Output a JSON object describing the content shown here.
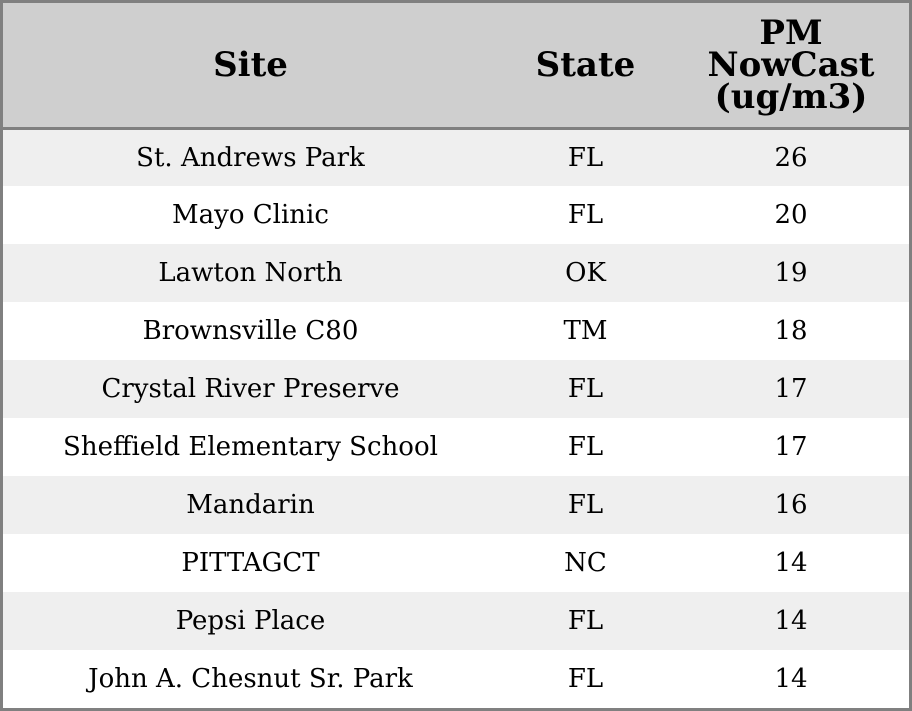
{
  "table": {
    "headers": {
      "site": "Site",
      "state": "State",
      "pm": "PM NowCast (ug/m3)"
    },
    "rows": [
      {
        "site": "St. Andrews Park",
        "state": "FL",
        "pm": "26"
      },
      {
        "site": "Mayo Clinic",
        "state": "FL",
        "pm": "20"
      },
      {
        "site": "Lawton North",
        "state": "OK",
        "pm": "19"
      },
      {
        "site": "Brownsville C80",
        "state": "TM",
        "pm": "18"
      },
      {
        "site": "Crystal River Preserve",
        "state": "FL",
        "pm": "17"
      },
      {
        "site": "Sheffield Elementary School",
        "state": "FL",
        "pm": "17"
      },
      {
        "site": "Mandarin",
        "state": "FL",
        "pm": "16"
      },
      {
        "site": "PITTAGCT",
        "state": "NC",
        "pm": "14"
      },
      {
        "site": "Pepsi Place",
        "state": "FL",
        "pm": "14"
      },
      {
        "site": "John A. Chesnut Sr. Park",
        "state": "FL",
        "pm": "14"
      }
    ]
  }
}
